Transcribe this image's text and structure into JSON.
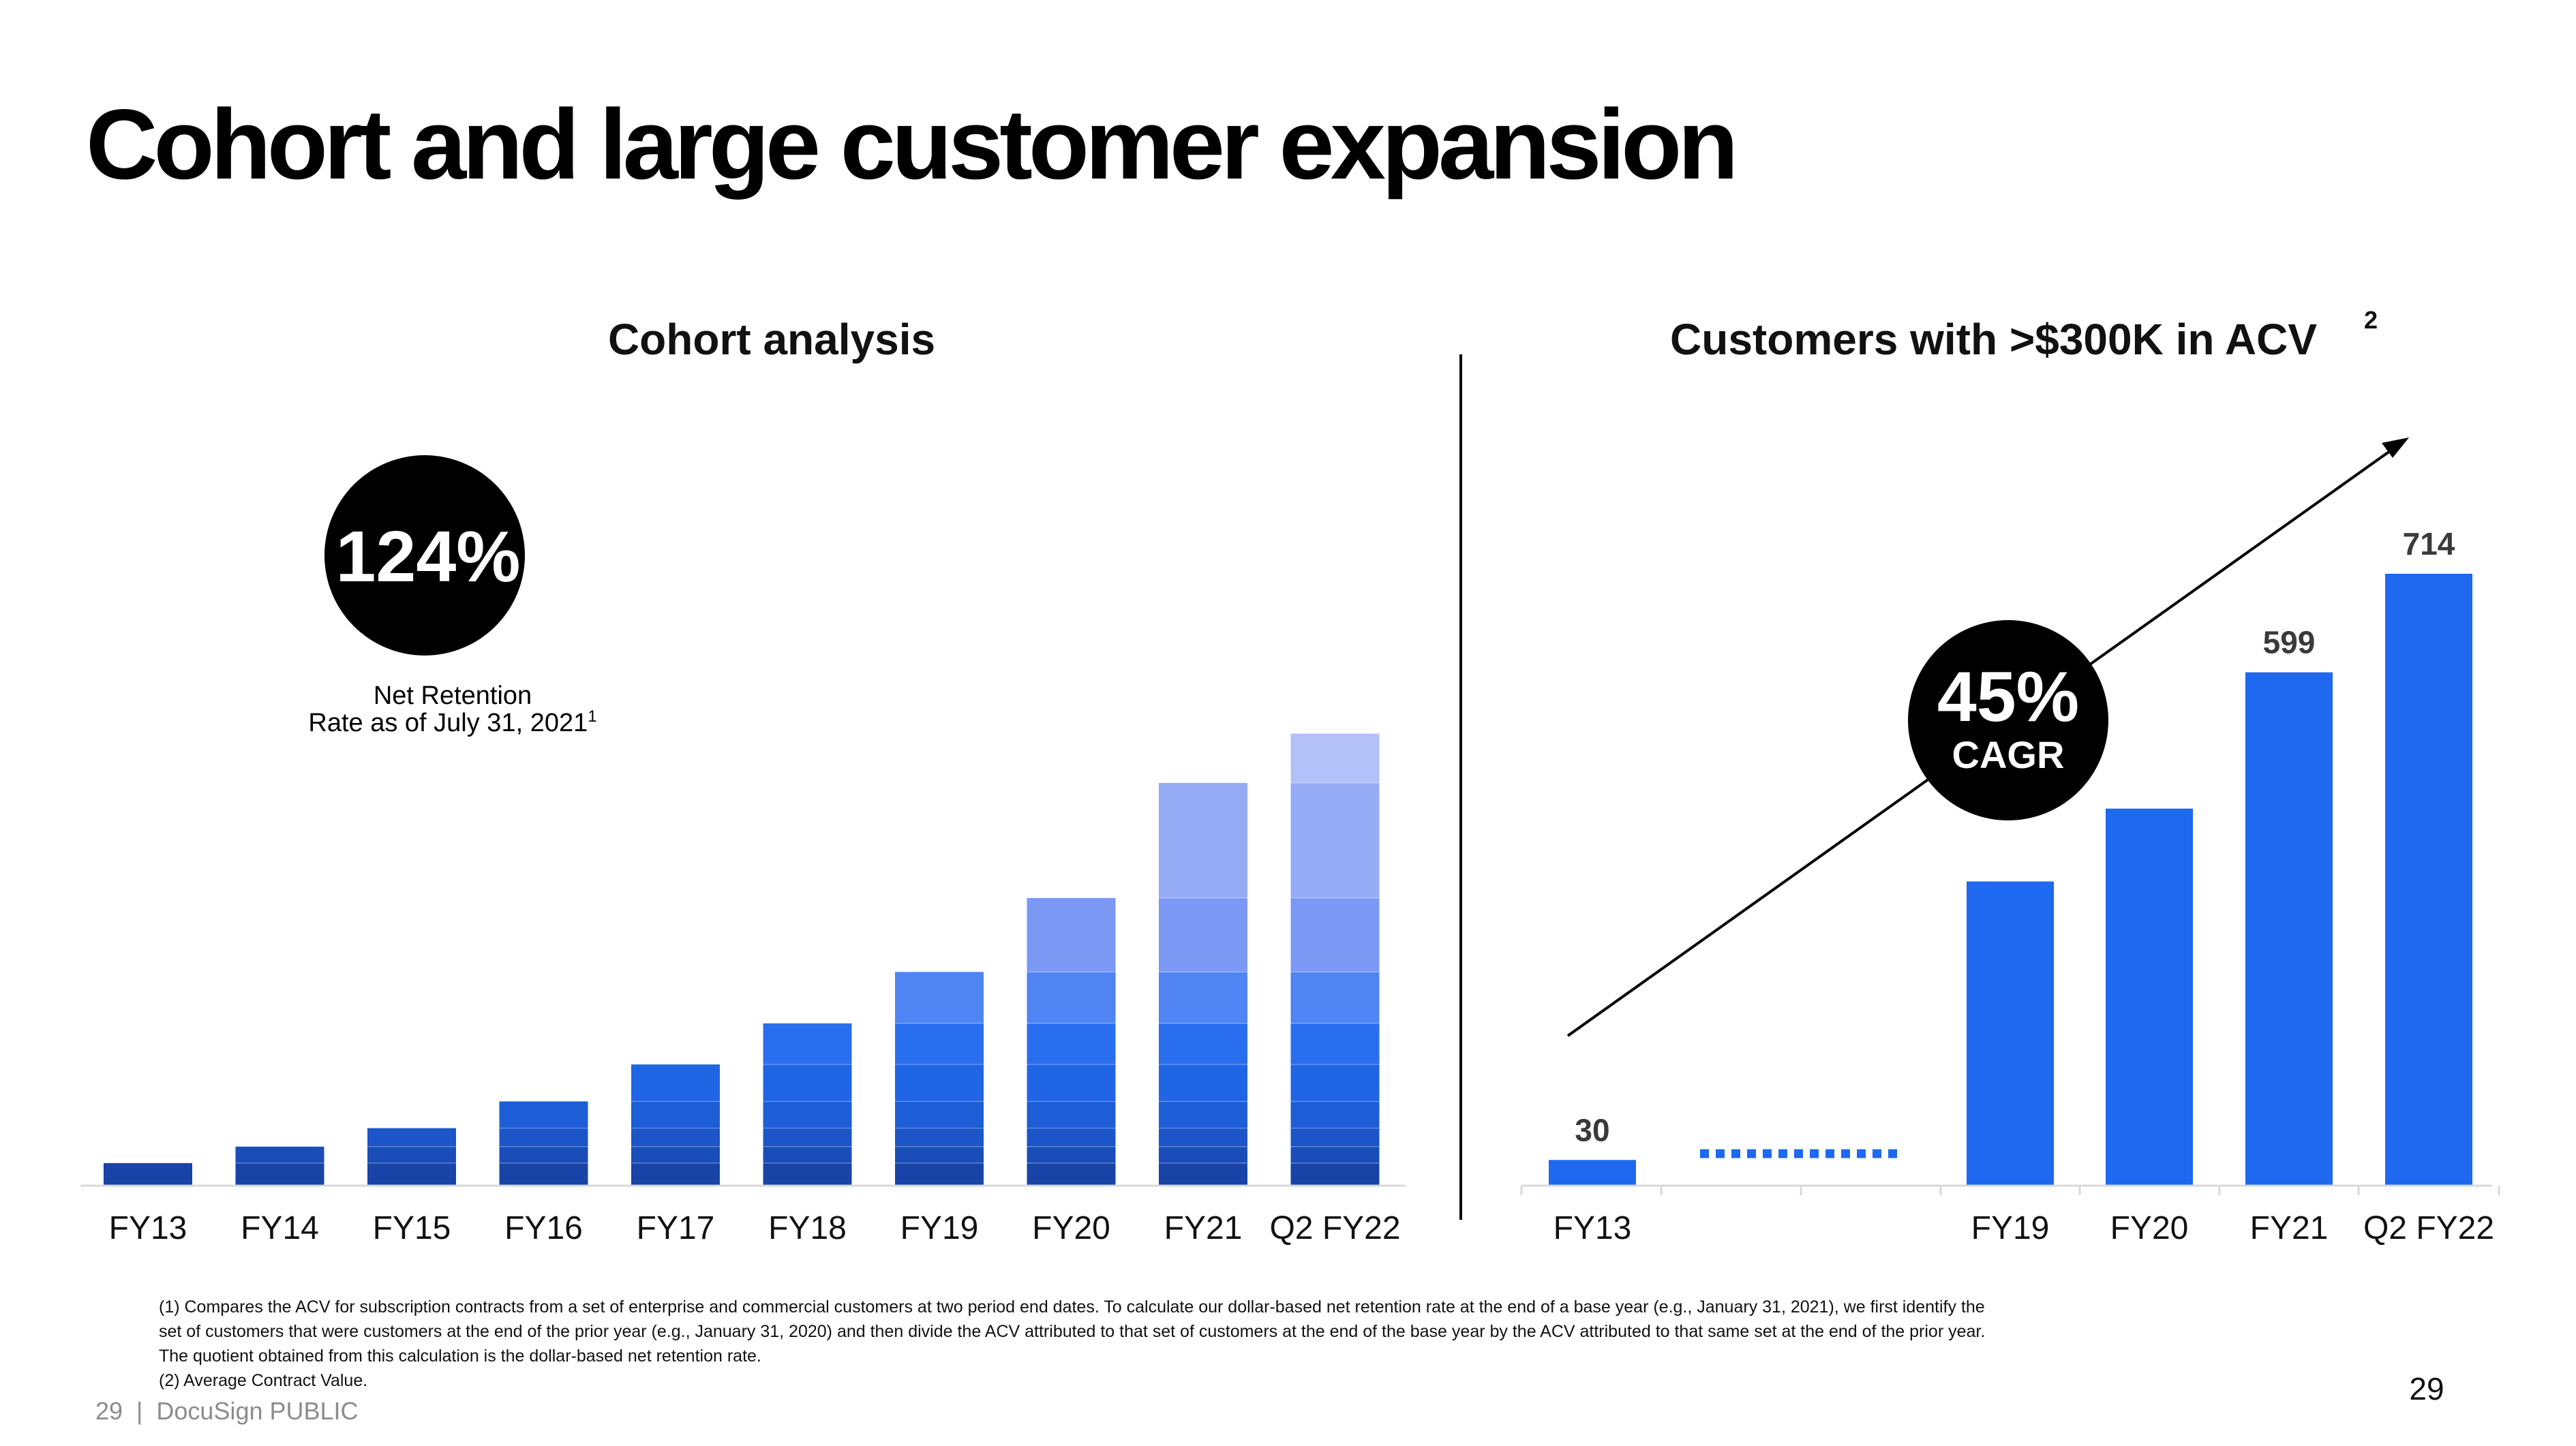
{
  "page": {
    "title": "Cohort and large customer expansion",
    "footer": "29  |  DocuSign PUBLIC",
    "page_number": "29"
  },
  "footnotes": [
    "(1)  Compares the ACV for subscription contracts from a set of enterprise and commercial customers at two period end dates. To calculate our dollar-based net retention rate at the end of a base year (e.g., January 31, 2021), we first identify the",
    "set of customers that were customers at the end of the prior year (e.g., January 31, 2020) and then divide the ACV attributed to that set of customers at the end of the base year by the ACV attributed to that same set at the end of the prior year.",
    "The quotient obtained from this calculation is the dollar-based net retention rate.",
    "(2)  Average Contract Value."
  ],
  "colors": {
    "cohort_shades": [
      "#1844a8",
      "#1a4dba",
      "#1b55c8",
      "#1d5ed6",
      "#1f65e6",
      "#2a6ef0",
      "#4f84f2",
      "#7b98f4",
      "#96abf6",
      "#b3c1f8",
      "#cdd6fb"
    ],
    "acv_bar": "#1f68f0",
    "badge": "#000000"
  },
  "chart_data": [
    {
      "type": "bar",
      "stacked": true,
      "title": "Cohort analysis",
      "categories": [
        "FY13",
        "FY14",
        "FY15",
        "FY16",
        "FY17",
        "FY18",
        "FY19",
        "FY20",
        "FY21",
        "Q2 FY22"
      ],
      "value_unit": "relative (unlabeled)",
      "stacks": [
        [
          5.5
        ],
        [
          5.5,
          4.0
        ],
        [
          5.5,
          4.0,
          4.5
        ],
        [
          5.5,
          4.0,
          4.5,
          6.5
        ],
        [
          5.5,
          4.0,
          4.5,
          6.5,
          9.0
        ],
        [
          5.5,
          4.0,
          4.5,
          6.5,
          9.0,
          10.0
        ],
        [
          5.5,
          4.0,
          4.5,
          6.5,
          9.0,
          10.0,
          12.5
        ],
        [
          5.5,
          4.0,
          4.5,
          6.5,
          9.0,
          10.0,
          12.5,
          18.0
        ],
        [
          5.5,
          4.0,
          4.5,
          6.5,
          9.0,
          10.0,
          12.5,
          18.0,
          28.0
        ],
        [
          5.5,
          4.0,
          4.5,
          6.5,
          9.0,
          10.0,
          12.5,
          18.0,
          28.0,
          12.0
        ]
      ],
      "stack_tops": [
        6,
        10,
        15,
        22,
        33,
        48,
        64,
        86,
        132,
        158
      ],
      "ylim": [
        0,
        160
      ],
      "axes_visible": false,
      "badge": {
        "value": "124%",
        "label_line1": "Net Retention",
        "label_line2": "Rate as of July 31, 2021",
        "label_sup": "1"
      }
    },
    {
      "type": "bar",
      "title": "Customers with >$300K in ACV",
      "title_sup": "2",
      "categories": [
        "FY13",
        "FY19",
        "FY20",
        "FY21",
        "Q2 FY22"
      ],
      "values": [
        30,
        355,
        440,
        599,
        714
      ],
      "data_labels": [
        "30",
        "",
        "",
        "599",
        "714"
      ],
      "axis_break_between": [
        "FY13",
        "FY19"
      ],
      "ylim": [
        0,
        720
      ],
      "axes_visible": false,
      "trend_arrow": true,
      "badge": {
        "value": "45%",
        "label": "CAGR"
      }
    }
  ]
}
